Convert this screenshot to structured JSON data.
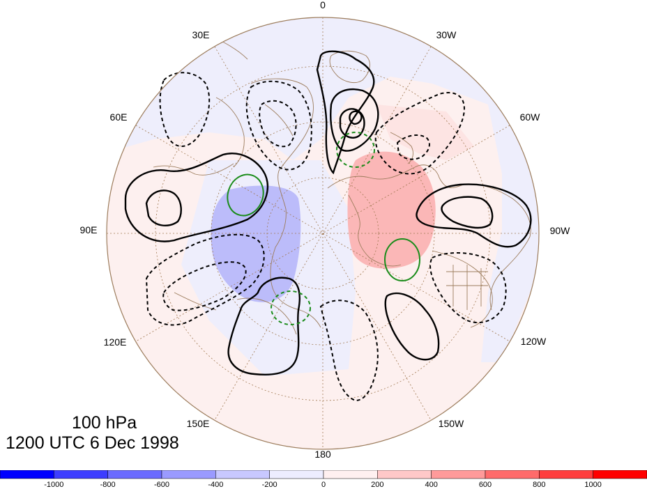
{
  "map": {
    "level": "100 hPa",
    "valid_time": "1200 UTC 6 Dec 1998",
    "longitude_labels": [
      {
        "text": "0"
      },
      {
        "text": "30W"
      },
      {
        "text": "60W"
      },
      {
        "text": "90W"
      },
      {
        "text": "120W"
      },
      {
        "text": "150W"
      },
      {
        "text": "180"
      },
      {
        "text": "150E"
      },
      {
        "text": "120E"
      },
      {
        "text": "90E"
      },
      {
        "text": "60E"
      },
      {
        "text": "30E"
      }
    ],
    "colors": {
      "positive_contour": "#000000",
      "negative_contour": "#000000",
      "green_contour": "#1a8c1a",
      "coastline": "#9c7c5c",
      "gridline": "#a07850"
    }
  },
  "colorbar": {
    "colors": [
      "#0000ff",
      "#3d3dff",
      "#6b6bff",
      "#9a9aff",
      "#c8c8ff",
      "#ededff",
      "#fff0f0",
      "#ffc8c8",
      "#ff9a9a",
      "#ff6b6b",
      "#ff3d3d",
      "#ff0000"
    ],
    "labels": [
      "-1000",
      "-800",
      "-600",
      "-400",
      "-200",
      "0",
      "200",
      "400",
      "600",
      "800",
      "1000"
    ]
  }
}
